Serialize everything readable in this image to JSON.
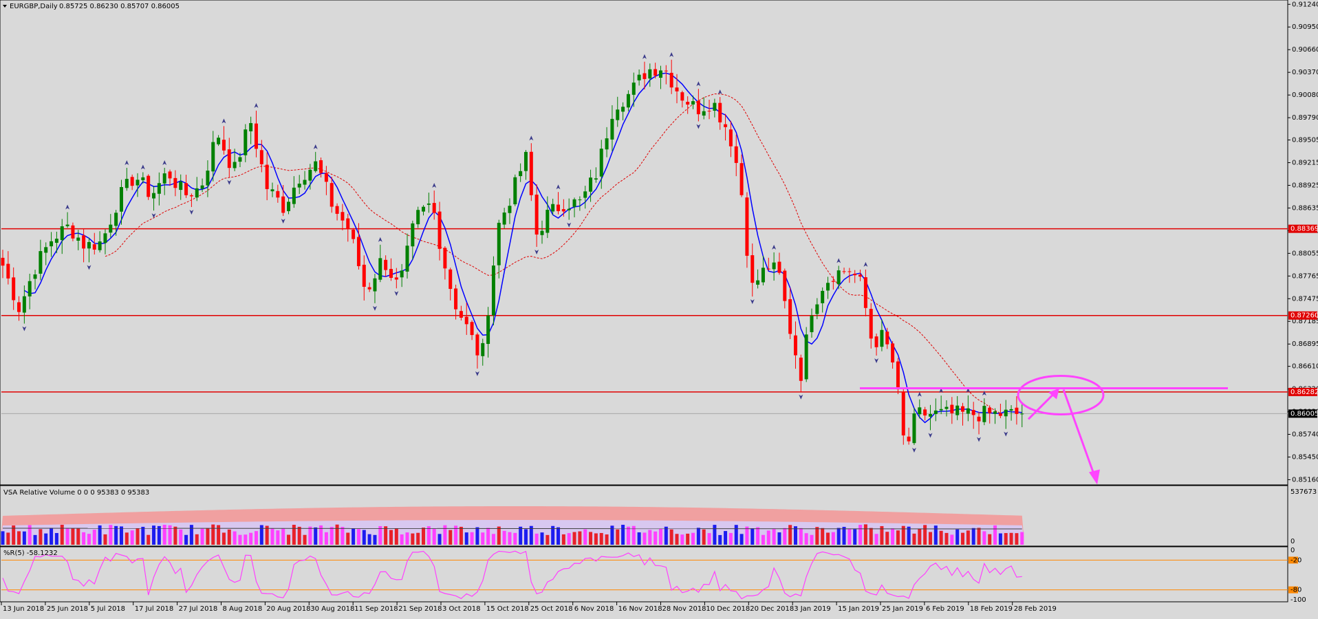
{
  "chart_data": {
    "type": "candlestick",
    "symbol_header": "EURGBP,Daily",
    "ohlc_header": "0.85725 0.86230 0.85707 0.86005",
    "price_axis_ticks": [
      "0.91240",
      "0.90950",
      "0.90660",
      "0.90370",
      "0.90080",
      "0.89790",
      "0.89505",
      "0.89215",
      "0.88925",
      "0.88635",
      "0.88345",
      "0.88055",
      "0.87765",
      "0.87475",
      "0.87185",
      "0.86895",
      "0.86610",
      "0.86320",
      "0.86030",
      "0.85740",
      "0.85450",
      "0.85160"
    ],
    "ylim": [
      0.8512,
      0.9126
    ],
    "horizontal_levels": [
      {
        "label": "0.88369",
        "value": 0.88369,
        "color": "#e00000"
      },
      {
        "label": "0.87260",
        "value": 0.8726,
        "color": "#e00000"
      },
      {
        "label": "0.86282",
        "value": 0.86282,
        "color": "#e00000"
      }
    ],
    "current_price": {
      "label": "0.86005",
      "value": 0.86005
    },
    "time_labels": [
      "13 Jun 2018",
      "25 Jun 2018",
      "5 Jul 2018",
      "17 Jul 2018",
      "27 Jul 2018",
      "8 Aug 2018",
      "20 Aug 2018",
      "30 Aug 2018",
      "11 Sep 2018",
      "21 Sep 2018",
      "3 Oct 2018",
      "15 Oct 2018",
      "25 Oct 2018",
      "6 Nov 2018",
      "16 Nov 2018",
      "28 Nov 2018",
      "10 Dec 2018",
      "20 Dec 2018",
      "3 Jan 2019",
      "15 Jan 2019",
      "25 Jan 2019",
      "6 Feb 2019",
      "18 Feb 2019",
      "28 Feb 2019"
    ],
    "bar_count": 190,
    "close_anchors": [
      [
        0,
        0.879
      ],
      [
        6,
        0.8735
      ],
      [
        12,
        0.879
      ],
      [
        18,
        0.8825
      ],
      [
        24,
        0.884
      ],
      [
        30,
        0.8815
      ],
      [
        36,
        0.882
      ],
      [
        42,
        0.8875
      ],
      [
        48,
        0.8905
      ],
      [
        54,
        0.888
      ],
      [
        60,
        0.891
      ],
      [
        66,
        0.888
      ],
      [
        72,
        0.889
      ],
      [
        78,
        0.896
      ],
      [
        84,
        0.891
      ],
      [
        90,
        0.8975
      ],
      [
        96,
        0.889
      ],
      [
        102,
        0.8865
      ],
      [
        108,
        0.8905
      ],
      [
        114,
        0.892
      ],
      [
        120,
        0.8865
      ],
      [
        126,
        0.8835
      ],
      [
        132,
        0.8755
      ],
      [
        138,
        0.88
      ],
      [
        144,
        0.876
      ],
      [
        150,
        0.885
      ],
      [
        156,
        0.887
      ],
      [
        160,
        0.88
      ],
      [
        164,
        0.8745
      ],
      [
        170,
        0.87
      ],
      [
        174,
        0.8668
      ],
      [
        180,
        0.884
      ],
      [
        186,
        0.889
      ],
      [
        190,
        0.893
      ],
      [
        194,
        0.883
      ],
      [
        198,
        0.8855
      ],
      [
        204,
        0.887
      ],
      [
        210,
        0.887
      ],
      [
        216,
        0.891
      ],
      [
        222,
        0.8995
      ],
      [
        228,
        0.901
      ],
      [
        234,
        0.904
      ],
      [
        240,
        0.9045
      ],
      [
        246,
        0.901
      ],
      [
        252,
        0.899
      ],
      [
        258,
        0.9
      ],
      [
        264,
        0.896
      ],
      [
        268,
        0.89
      ],
      [
        272,
        0.876
      ],
      [
        278,
        0.879
      ],
      [
        282,
        0.878
      ],
      [
        286,
        0.871
      ],
      [
        290,
        0.865
      ],
      [
        294,
        0.8735
      ],
      [
        298,
        0.8765
      ],
      [
        302,
        0.878
      ],
      [
        308,
        0.8785
      ],
      [
        312,
        0.8765
      ],
      [
        316,
        0.869
      ],
      [
        320,
        0.87
      ],
      [
        324,
        0.866
      ],
      [
        328,
        0.855
      ],
      [
        332,
        0.86
      ]
    ],
    "series": [
      {
        "name": "",
        "kind": "blue moving average",
        "color": "#0000ff"
      },
      {
        "name": "",
        "kind": "red dashed moving average",
        "color": "#e00000"
      }
    ],
    "volume_panel": {
      "title": "VSA Relative Volume 0 0 0 95383 0 95383",
      "axis_labels": [
        "537673",
        "0"
      ],
      "bar_colors": [
        "#e8202a",
        "#1c1cf0",
        "#ff40ff"
      ]
    },
    "williams_panel": {
      "title": "%R(5) -58.1232",
      "axis_labels": [
        "0",
        "-20",
        "-80",
        "-100"
      ],
      "levels": [
        -20,
        -80
      ],
      "ylim": [
        -100,
        0
      ],
      "line_color": "#ff40ff"
    },
    "annotations": {
      "magenta_level": 0.8633,
      "color": "#ff44ff"
    },
    "colors": {
      "background": "#d9d9d9",
      "bull": "#008000",
      "bear": "#ff0000",
      "level_line": "#e00000",
      "orange": "#ff8800"
    }
  }
}
